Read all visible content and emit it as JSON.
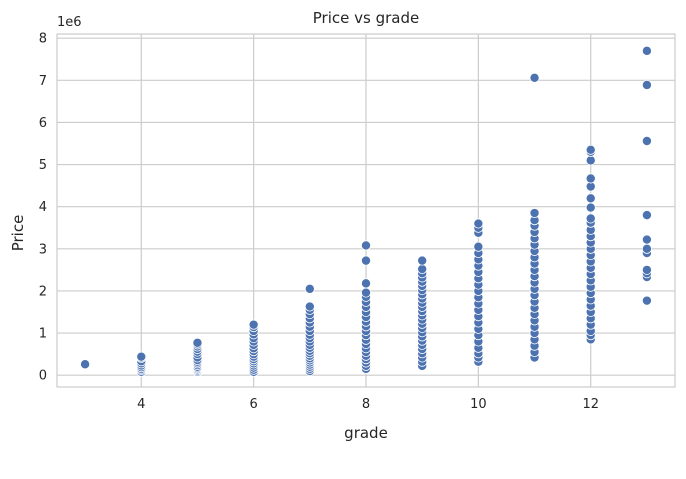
{
  "chart_data": {
    "type": "scatter",
    "title": "Price vs grade",
    "xlabel": "grade",
    "ylabel": "Price",
    "y_offset_text": "1e6",
    "xlim": [
      2.5,
      13.5
    ],
    "ylim": [
      -0.28,
      8.1
    ],
    "x_ticks": [
      4,
      6,
      8,
      10,
      12
    ],
    "y_ticks": [
      0,
      1,
      2,
      3,
      4,
      5,
      6,
      7,
      8
    ],
    "grid": true,
    "marker_color": "#4c72b0",
    "series": [
      {
        "points": [
          [
            3,
            0.26
          ],
          [
            4,
            0.08
          ],
          [
            4,
            0.12
          ],
          [
            4,
            0.15
          ],
          [
            4,
            0.19
          ],
          [
            4,
            0.23
          ],
          [
            4,
            0.28
          ],
          [
            4,
            0.33
          ],
          [
            4,
            0.41
          ],
          [
            4,
            0.44
          ],
          [
            5,
            0.08
          ],
          [
            5,
            0.11
          ],
          [
            5,
            0.14
          ],
          [
            5,
            0.17
          ],
          [
            5,
            0.2
          ],
          [
            5,
            0.24
          ],
          [
            5,
            0.28
          ],
          [
            5,
            0.32
          ],
          [
            5,
            0.36
          ],
          [
            5,
            0.42
          ],
          [
            5,
            0.5
          ],
          [
            5,
            0.56
          ],
          [
            5,
            0.62
          ],
          [
            5,
            0.68
          ],
          [
            5,
            0.73
          ],
          [
            5,
            0.77
          ],
          [
            6,
            0.08
          ],
          [
            6,
            0.13
          ],
          [
            6,
            0.18
          ],
          [
            6,
            0.23
          ],
          [
            6,
            0.28
          ],
          [
            6,
            0.33
          ],
          [
            6,
            0.38
          ],
          [
            6,
            0.44
          ],
          [
            6,
            0.5
          ],
          [
            6,
            0.57
          ],
          [
            6,
            0.64
          ],
          [
            6,
            0.72
          ],
          [
            6,
            0.8
          ],
          [
            6,
            0.88
          ],
          [
            6,
            0.97
          ],
          [
            6,
            1.05
          ],
          [
            6,
            1.14
          ],
          [
            6,
            1.2
          ],
          [
            7,
            0.1
          ],
          [
            7,
            0.15
          ],
          [
            7,
            0.2
          ],
          [
            7,
            0.25
          ],
          [
            7,
            0.3
          ],
          [
            7,
            0.35
          ],
          [
            7,
            0.4
          ],
          [
            7,
            0.46
          ],
          [
            7,
            0.52
          ],
          [
            7,
            0.58
          ],
          [
            7,
            0.65
          ],
          [
            7,
            0.72
          ],
          [
            7,
            0.8
          ],
          [
            7,
            0.88
          ],
          [
            7,
            0.96
          ],
          [
            7,
            1.05
          ],
          [
            7,
            1.15
          ],
          [
            7,
            1.25
          ],
          [
            7,
            1.35
          ],
          [
            7,
            1.45
          ],
          [
            7,
            1.55
          ],
          [
            7,
            1.63
          ],
          [
            7,
            2.05
          ],
          [
            8,
            0.15
          ],
          [
            8,
            0.22
          ],
          [
            8,
            0.3
          ],
          [
            8,
            0.38
          ],
          [
            8,
            0.46
          ],
          [
            8,
            0.55
          ],
          [
            8,
            0.64
          ],
          [
            8,
            0.74
          ],
          [
            8,
            0.84
          ],
          [
            8,
            0.95
          ],
          [
            8,
            1.05
          ],
          [
            8,
            1.16
          ],
          [
            8,
            1.27
          ],
          [
            8,
            1.38
          ],
          [
            8,
            1.5
          ],
          [
            8,
            1.62
          ],
          [
            8,
            1.74
          ],
          [
            8,
            1.86
          ],
          [
            8,
            1.96
          ],
          [
            8,
            2.18
          ],
          [
            8,
            2.72
          ],
          [
            8,
            3.08
          ],
          [
            9,
            0.22
          ],
          [
            9,
            0.32
          ],
          [
            9,
            0.42
          ],
          [
            9,
            0.52
          ],
          [
            9,
            0.62
          ],
          [
            9,
            0.72
          ],
          [
            9,
            0.82
          ],
          [
            9,
            0.92
          ],
          [
            9,
            1.02
          ],
          [
            9,
            1.12
          ],
          [
            9,
            1.22
          ],
          [
            9,
            1.32
          ],
          [
            9,
            1.42
          ],
          [
            9,
            1.52
          ],
          [
            9,
            1.62
          ],
          [
            9,
            1.72
          ],
          [
            9,
            1.82
          ],
          [
            9,
            1.92
          ],
          [
            9,
            2.02
          ],
          [
            9,
            2.12
          ],
          [
            9,
            2.22
          ],
          [
            9,
            2.32
          ],
          [
            9,
            2.42
          ],
          [
            9,
            2.52
          ],
          [
            9,
            2.72
          ],
          [
            10,
            0.32
          ],
          [
            10,
            0.42
          ],
          [
            10,
            0.52
          ],
          [
            10,
            0.65
          ],
          [
            10,
            0.8
          ],
          [
            10,
            0.95
          ],
          [
            10,
            1.1
          ],
          [
            10,
            1.25
          ],
          [
            10,
            1.4
          ],
          [
            10,
            1.55
          ],
          [
            10,
            1.7
          ],
          [
            10,
            1.85
          ],
          [
            10,
            2.0
          ],
          [
            10,
            2.15
          ],
          [
            10,
            2.3
          ],
          [
            10,
            2.45
          ],
          [
            10,
            2.6
          ],
          [
            10,
            2.75
          ],
          [
            10,
            2.9
          ],
          [
            10,
            3.05
          ],
          [
            10,
            3.38
          ],
          [
            10,
            3.5
          ],
          [
            10,
            3.6
          ],
          [
            11,
            0.42
          ],
          [
            11,
            0.55
          ],
          [
            11,
            0.7
          ],
          [
            11,
            0.85
          ],
          [
            11,
            1.0
          ],
          [
            11,
            1.15
          ],
          [
            11,
            1.3
          ],
          [
            11,
            1.45
          ],
          [
            11,
            1.6
          ],
          [
            11,
            1.75
          ],
          [
            11,
            1.9
          ],
          [
            11,
            2.05
          ],
          [
            11,
            2.2
          ],
          [
            11,
            2.35
          ],
          [
            11,
            2.5
          ],
          [
            11,
            2.65
          ],
          [
            11,
            2.8
          ],
          [
            11,
            2.95
          ],
          [
            11,
            3.1
          ],
          [
            11,
            3.25
          ],
          [
            11,
            3.4
          ],
          [
            11,
            3.55
          ],
          [
            11,
            3.68
          ],
          [
            11,
            3.85
          ],
          [
            11,
            7.06
          ],
          [
            12,
            0.85
          ],
          [
            12,
            0.95
          ],
          [
            12,
            1.05
          ],
          [
            12,
            1.2
          ],
          [
            12,
            1.35
          ],
          [
            12,
            1.5
          ],
          [
            12,
            1.65
          ],
          [
            12,
            1.8
          ],
          [
            12,
            1.95
          ],
          [
            12,
            2.1
          ],
          [
            12,
            2.25
          ],
          [
            12,
            2.4
          ],
          [
            12,
            2.55
          ],
          [
            12,
            2.7
          ],
          [
            12,
            2.85
          ],
          [
            12,
            3.0
          ],
          [
            12,
            3.15
          ],
          [
            12,
            3.3
          ],
          [
            12,
            3.45
          ],
          [
            12,
            3.62
          ],
          [
            12,
            3.72
          ],
          [
            12,
            3.98
          ],
          [
            12,
            4.2
          ],
          [
            12,
            4.48
          ],
          [
            12,
            4.67
          ],
          [
            12,
            5.1
          ],
          [
            12,
            5.3
          ],
          [
            12,
            5.35
          ],
          [
            13,
            1.77
          ],
          [
            13,
            2.33
          ],
          [
            13,
            2.42
          ],
          [
            13,
            2.5
          ],
          [
            13,
            2.9
          ],
          [
            13,
            3.0
          ],
          [
            13,
            3.22
          ],
          [
            13,
            3.8
          ],
          [
            13,
            5.56
          ],
          [
            13,
            6.89
          ],
          [
            13,
            7.7
          ]
        ]
      }
    ]
  }
}
